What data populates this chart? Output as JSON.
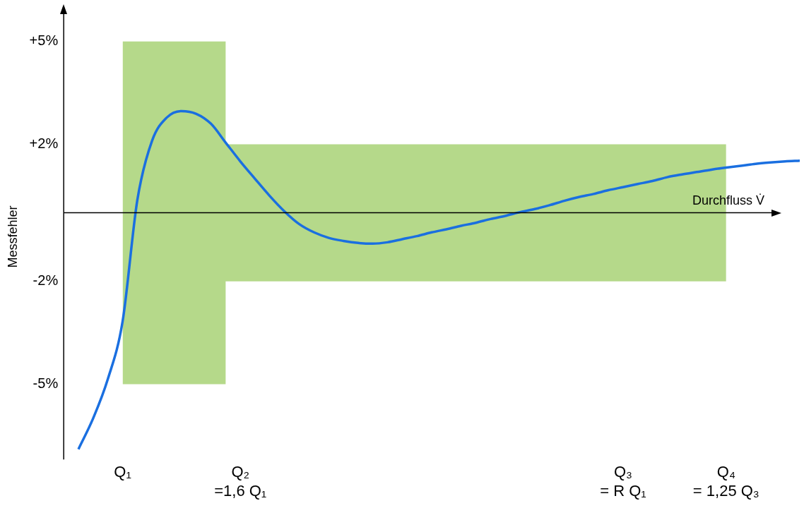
{
  "chart_data": {
    "type": "line",
    "xlabel": "Durchfluss V̇",
    "ylabel": "Messfehler",
    "categories": [
      null,
      null,
      null,
      null,
      "Q₁",
      null,
      null,
      null,
      null,
      null,
      null,
      null,
      "Q₂\n=1,6 Q₁",
      null,
      null,
      null,
      null,
      null,
      null,
      null,
      null,
      null,
      null,
      null,
      null,
      null,
      null,
      null,
      null,
      null,
      null,
      null,
      null,
      null,
      null,
      null,
      null,
      null,
      "Q₃\n= R Q₁",
      null,
      null,
      null,
      null,
      null,
      null,
      "Q₄\n= 1,25 Q₃",
      null,
      null,
      null,
      null,
      null
    ],
    "ylim": [
      -7.2,
      5.8
    ],
    "yticks": [
      {
        "value": -5,
        "label": "-5%"
      },
      {
        "value": -2,
        "label": "-2%"
      },
      {
        "value": 2,
        "label": "+2%"
      },
      {
        "value": 5,
        "label": "+5%"
      }
    ],
    "grid": false,
    "legend": false,
    "marker": "none",
    "line_style": "solid",
    "series": [
      {
        "type": "area",
        "color": "#b5d98a",
        "values": [
          null,
          null,
          null,
          null,
          5,
          5,
          5,
          5,
          5,
          5,
          5,
          5,
          2,
          2,
          2,
          2,
          2,
          2,
          2,
          2,
          2,
          2,
          2,
          2,
          2,
          2,
          2,
          2,
          2,
          2,
          2,
          2,
          2,
          2,
          2,
          2,
          2,
          2,
          2,
          2,
          2,
          2,
          2,
          2,
          2,
          2,
          null,
          null,
          null,
          null,
          null
        ]
      },
      {
        "type": "area",
        "color": "#b5d98a",
        "values": [
          null,
          null,
          null,
          null,
          -5,
          -5,
          -5,
          -5,
          -5,
          -5,
          -5,
          -5,
          -2,
          -2,
          -2,
          -2,
          -2,
          -2,
          -2,
          -2,
          -2,
          -2,
          -2,
          -2,
          -2,
          -2,
          -2,
          -2,
          -2,
          -2,
          -2,
          -2,
          -2,
          -2,
          -2,
          -2,
          -2,
          -2,
          -2,
          -2,
          -2,
          -2,
          -2,
          -2,
          -2,
          -2,
          null,
          null,
          null,
          null,
          null
        ]
      },
      {
        "color": "#1a6fe0",
        "values": [
          null,
          -6.9,
          -6.0,
          -4.85,
          -3.17,
          0.37,
          2.1,
          2.78,
          2.97,
          2.89,
          2.6,
          2.05,
          1.5,
          0.99,
          0.49,
          0.04,
          -0.33,
          -0.57,
          -0.73,
          -0.82,
          -0.88,
          -0.9,
          -0.86,
          -0.77,
          -0.68,
          -0.57,
          -0.48,
          -0.38,
          -0.29,
          -0.18,
          -0.09,
          0.02,
          0.11,
          0.22,
          0.35,
          0.46,
          0.55,
          0.66,
          0.75,
          0.84,
          0.93,
          1.04,
          1.12,
          1.19,
          1.26,
          1.32,
          1.37,
          1.43,
          1.47,
          1.5,
          1.52
        ]
      }
    ]
  }
}
